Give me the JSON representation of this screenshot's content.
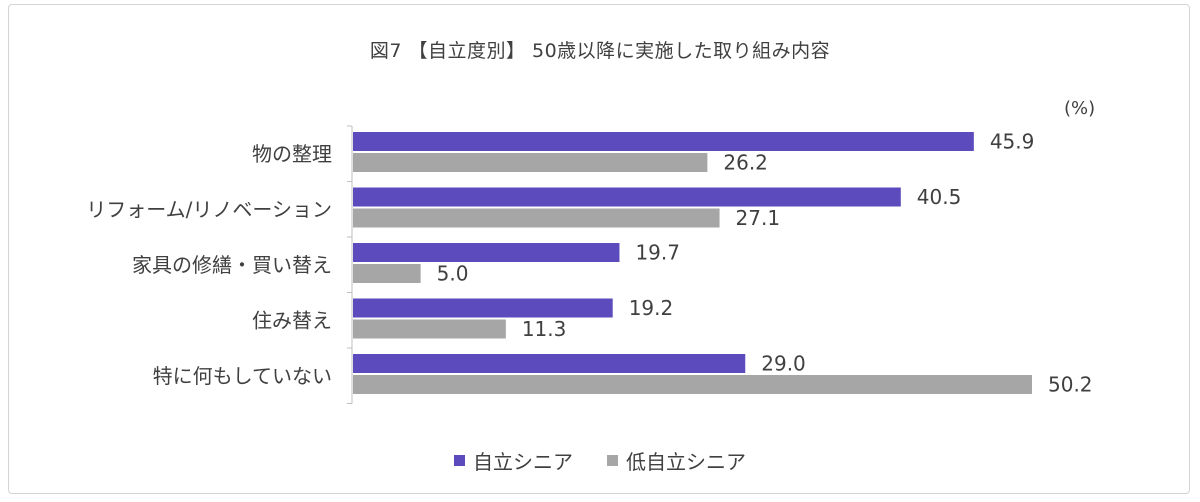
{
  "chart_data": {
    "type": "bar",
    "orientation": "horizontal",
    "title": "図7 【自立度別】 50歳以降に実施した取り組み内容",
    "unit": "(%)",
    "categories": [
      "物の整理",
      "リフォーム/リノベーション",
      "家具の修繕・買い替え",
      "住み替え",
      "特に何もしていない"
    ],
    "series": [
      {
        "name": "自立シニア",
        "color": "#5b4bbd",
        "values": [
          45.9,
          40.5,
          19.7,
          19.2,
          29.0
        ]
      },
      {
        "name": "低自立シニア",
        "color": "#a6a6a6",
        "values": [
          26.2,
          27.1,
          5.0,
          11.3,
          50.2
        ]
      }
    ],
    "value_labels": [
      [
        "45.9",
        "40.5",
        "19.7",
        "19.2",
        "29.0"
      ],
      [
        "26.2",
        "27.1",
        "5.0",
        "11.3",
        "50.2"
      ]
    ],
    "xlim": [
      0,
      50.2
    ],
    "grid": false,
    "legend_position": "bottom"
  }
}
